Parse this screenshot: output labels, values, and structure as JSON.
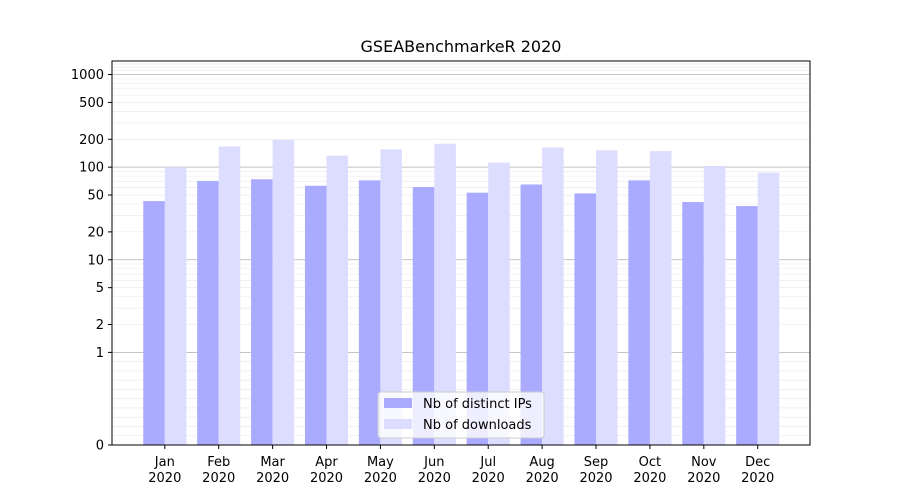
{
  "chart_data": {
    "type": "bar",
    "title": "GSEABenchmarkeR 2020",
    "xlabel": "",
    "ylabel": "",
    "y_scale": "symlog",
    "ylim": [
      0,
      1400
    ],
    "y_ticks": [
      0,
      1,
      2,
      5,
      10,
      20,
      50,
      100,
      200,
      500,
      1000
    ],
    "grid": true,
    "legend_position": "bottom-center",
    "categories": [
      [
        "Jan",
        "2020"
      ],
      [
        "Feb",
        "2020"
      ],
      [
        "Mar",
        "2020"
      ],
      [
        "Apr",
        "2020"
      ],
      [
        "May",
        "2020"
      ],
      [
        "Jun",
        "2020"
      ],
      [
        "Jul",
        "2020"
      ],
      [
        "Aug",
        "2020"
      ],
      [
        "Sep",
        "2020"
      ],
      [
        "Oct",
        "2020"
      ],
      [
        "Nov",
        "2020"
      ],
      [
        "Dec",
        "2020"
      ]
    ],
    "series": [
      {
        "name": "Nb of distinct IPs",
        "color": "#aaaaff",
        "values": [
          43,
          71,
          74,
          63,
          72,
          61,
          53,
          65,
          52,
          72,
          42,
          38
        ]
      },
      {
        "name": "Nb of downloads",
        "color": "#ddddff",
        "values": [
          100,
          167,
          197,
          133,
          156,
          179,
          112,
          163,
          152,
          149,
          103,
          87
        ]
      }
    ]
  }
}
